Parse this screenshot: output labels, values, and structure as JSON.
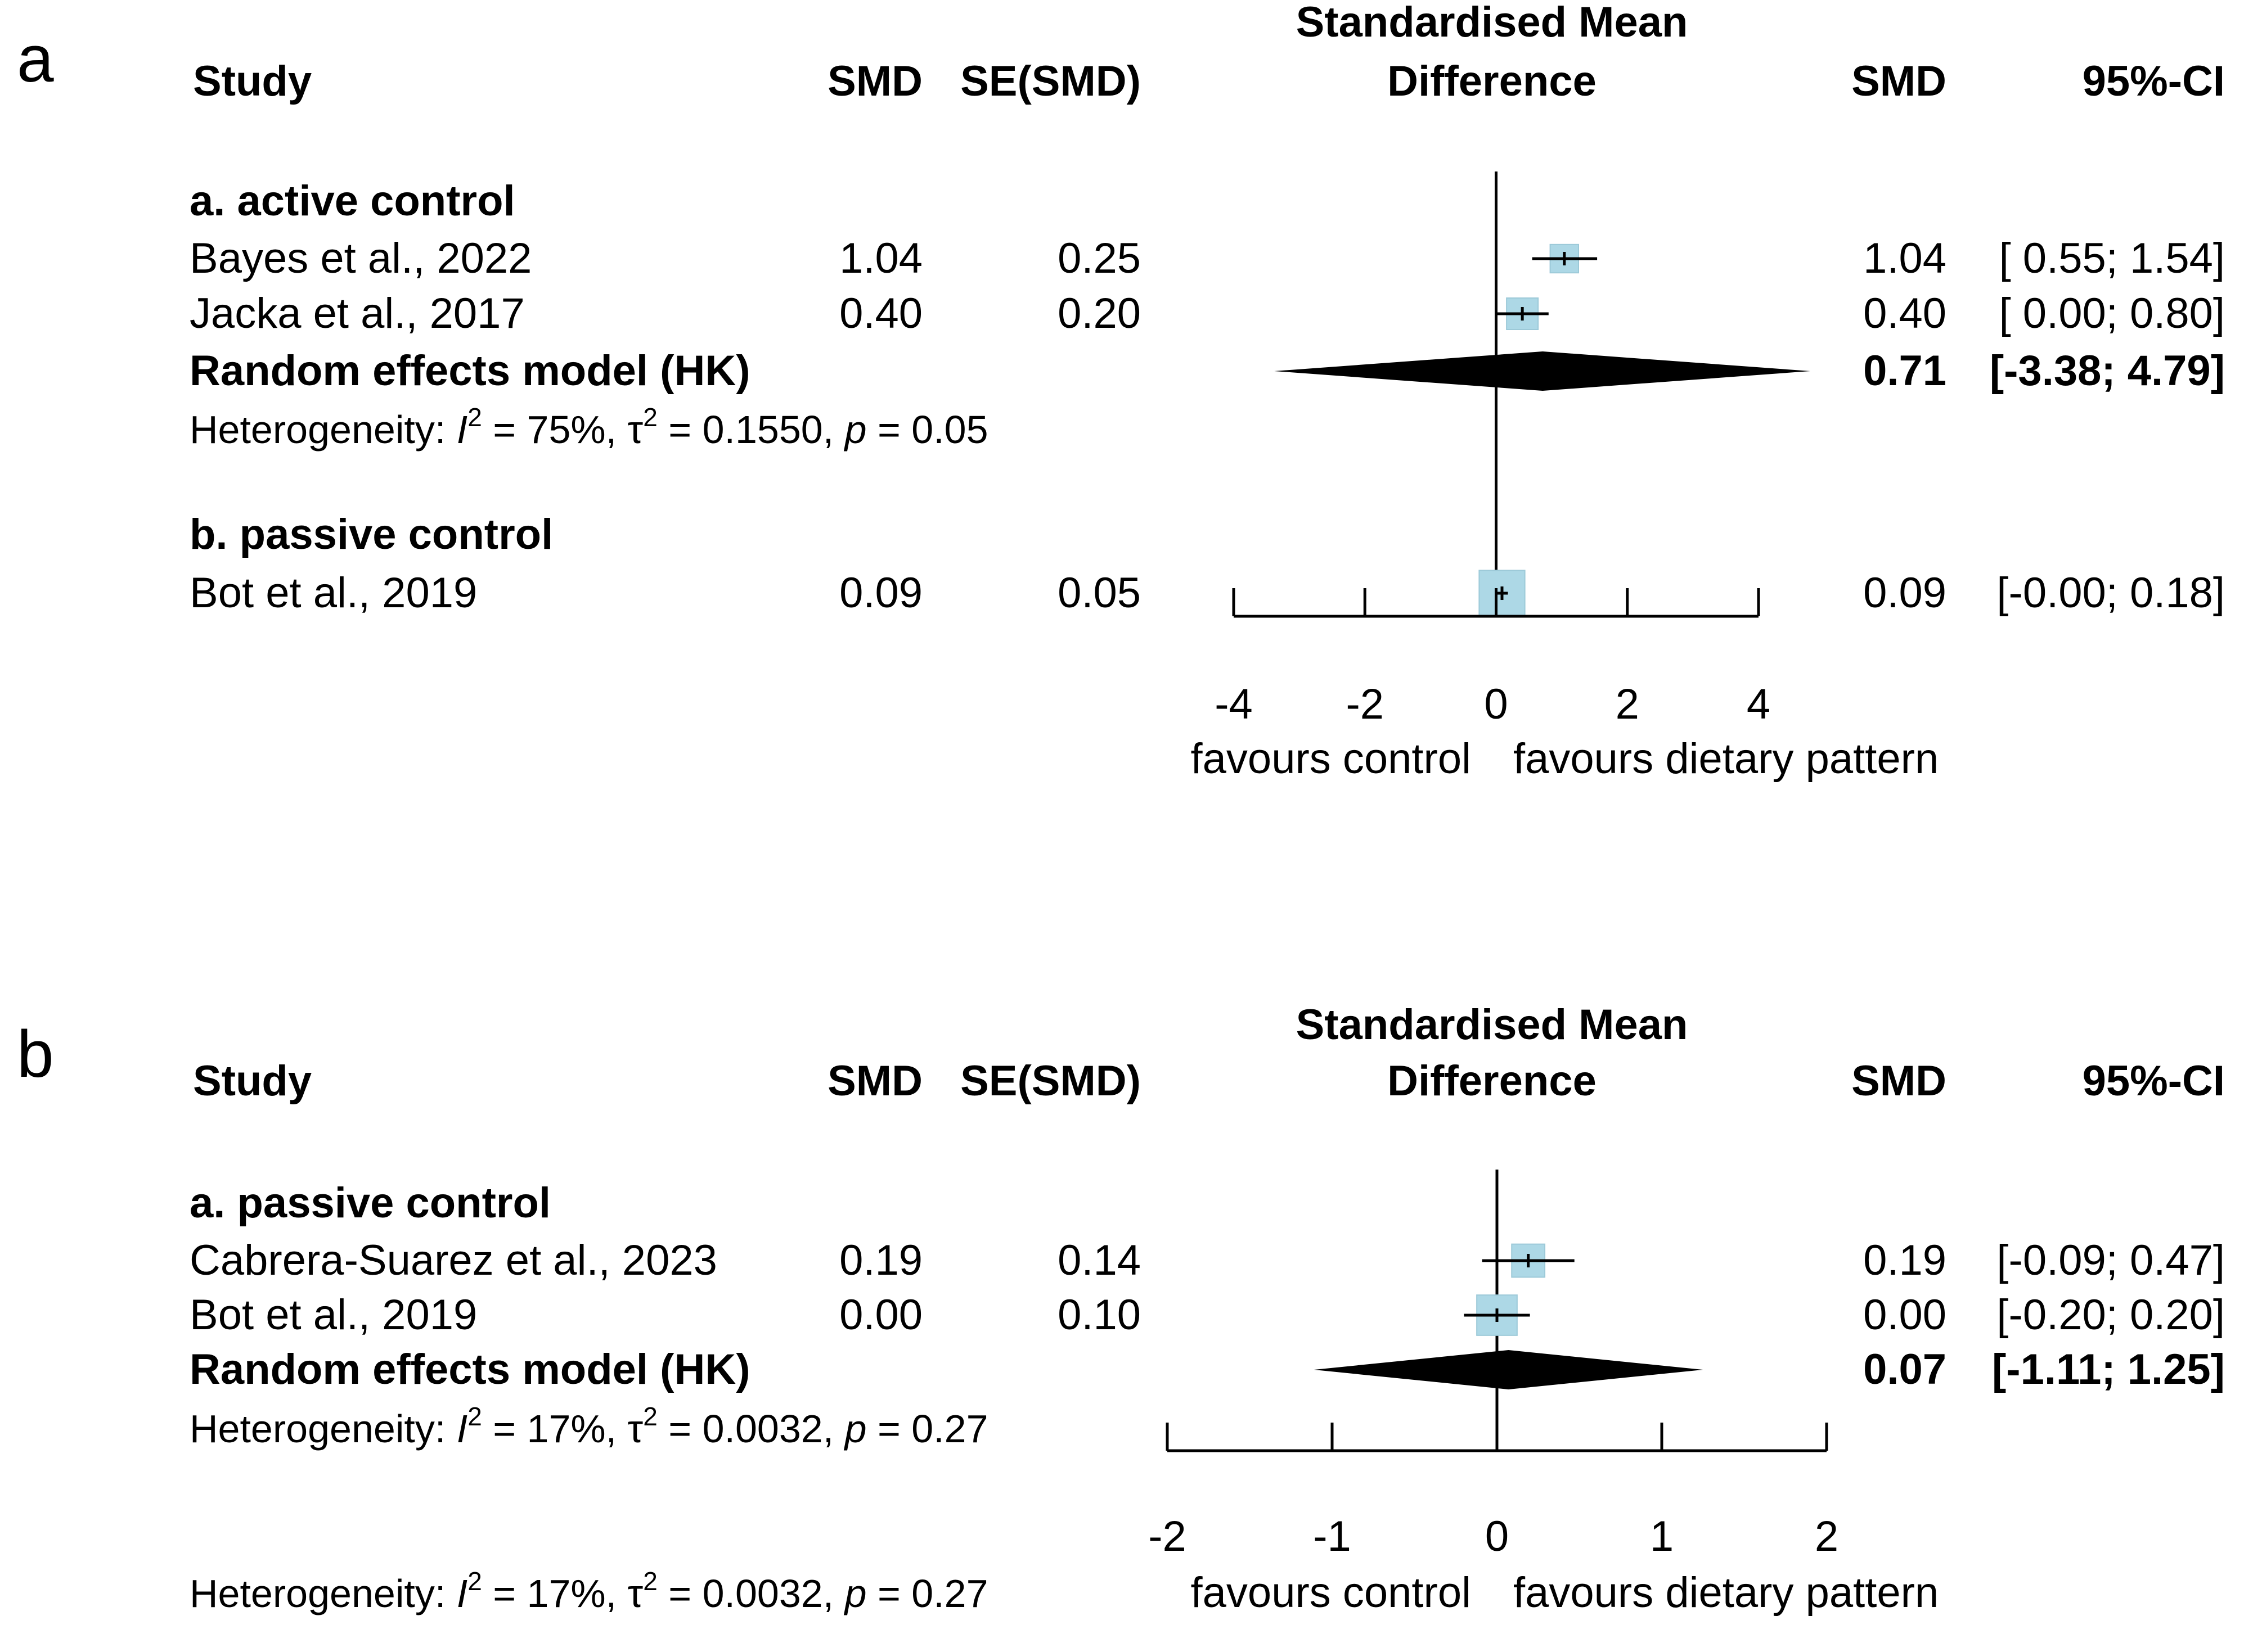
{
  "colors": {
    "box": "#add8e6",
    "box_stroke": "#9cc9d8",
    "ink": "#000000",
    "box_cross": "#ffffff"
  },
  "chart_data": [
    {
      "type": "forest",
      "panel_label": "a",
      "columns": {
        "study": "Study",
        "smd": "SMD",
        "se": "SE(SMD)",
        "right_smd": "SMD",
        "ci": "95%-CI"
      },
      "plot_title": [
        "Standardised Mean",
        "Difference"
      ],
      "xlabel_left": "favours control",
      "xlabel_right": "favours dietary pattern",
      "xlim": [
        -4,
        4
      ],
      "ticks": [
        -4,
        -2,
        0,
        2,
        4
      ],
      "tick_labels": [
        "-4",
        "-2",
        "0",
        "2",
        "4"
      ],
      "subgroups": [
        {
          "label": "a. active control",
          "studies": [
            {
              "name": "Bayes et al., 2022",
              "smd": 1.04,
              "lower": 0.55,
              "upper": 1.54,
              "smd_text": "1.04",
              "se_text": "0.25",
              "smd_right": "1.04",
              "ci_text": "[ 0.55; 1.54]",
              "weight": 0.9
            },
            {
              "name": "Jacka et al., 2017",
              "smd": 0.4,
              "lower": 0.0,
              "upper": 0.8,
              "smd_text": "0.40",
              "se_text": "0.20",
              "smd_right": "0.40",
              "ci_text": "[ 0.00; 0.80]",
              "weight": 1.0
            }
          ],
          "pooled": {
            "label": "Random effects model (HK)",
            "estimate": 0.71,
            "lower": -3.38,
            "upper": 4.79,
            "smd_text": "0.71",
            "ci_text": "[-3.38; 4.79]"
          },
          "heterogeneity": {
            "prefix": "Heterogeneity: ",
            "i": "I",
            "sup1": "2",
            "mid1": " = 75%, τ",
            "sup2": "2",
            "mid2": " = 0.1550, ",
            "p": "p",
            "end": " = 0.05"
          }
        },
        {
          "label": "b. passive control",
          "studies": [
            {
              "name": "Bot et al., 2019",
              "smd": 0.09,
              "lower": -0.0,
              "upper": 0.18,
              "smd_text": "0.09",
              "se_text": "0.05",
              "smd_right": "0.09",
              "ci_text": "[-0.00; 0.18]",
              "weight": 1.45
            }
          ]
        }
      ]
    },
    {
      "type": "forest",
      "panel_label": "b",
      "columns": {
        "study": "Study",
        "smd": "SMD",
        "se": "SE(SMD)",
        "right_smd": "SMD",
        "ci": "95%-CI"
      },
      "plot_title": [
        "Standardised Mean",
        "Difference"
      ],
      "xlabel_left": "favours control",
      "xlabel_right": "favours dietary pattern",
      "xlim": [
        -2,
        2
      ],
      "ticks": [
        -2,
        -1,
        0,
        1,
        2
      ],
      "tick_labels": [
        "-2",
        "-1",
        "0",
        "1",
        "2"
      ],
      "subgroups": [
        {
          "label": "a. passive control",
          "studies": [
            {
              "name": "Cabrera-Suarez et al., 2023",
              "smd": 0.19,
              "lower": -0.09,
              "upper": 0.47,
              "smd_text": "0.19",
              "se_text": "0.14",
              "smd_right": "0.19",
              "ci_text": "[-0.09; 0.47]",
              "weight": 1.05
            },
            {
              "name": "Bot et al., 2019",
              "smd": 0.0,
              "lower": -0.2,
              "upper": 0.2,
              "smd_text": "0.00",
              "se_text": "0.10",
              "smd_right": "0.00",
              "ci_text": "[-0.20; 0.20]",
              "weight": 1.28
            }
          ],
          "pooled": {
            "label": "Random effects model (HK)",
            "estimate": 0.07,
            "lower": -1.11,
            "upper": 1.25,
            "smd_text": "0.07",
            "ci_text": "[-1.11; 1.25]"
          },
          "heterogeneity": {
            "prefix": "Heterogeneity: ",
            "i": "I",
            "sup1": "2",
            "mid1": " = 17%, τ",
            "sup2": "2",
            "mid2": " = 0.0032, ",
            "p": "p",
            "end": " = 0.27"
          }
        }
      ],
      "overall_heterogeneity": {
        "prefix": "Heterogeneity: ",
        "i": "I",
        "sup1": "2",
        "mid1": " = 17%, τ",
        "sup2": "2",
        "mid2": " = 0.0032, ",
        "p": "p",
        "end": " = 0.27"
      }
    }
  ]
}
